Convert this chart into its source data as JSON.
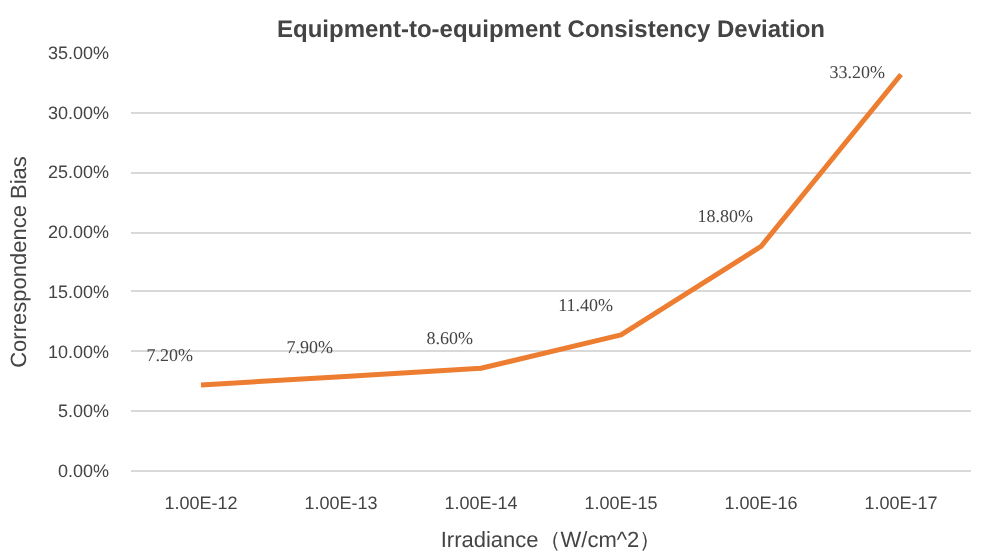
{
  "chart_data": {
    "type": "line",
    "title": "Equipment-to-equipment Consistency Deviation",
    "xlabel": "Irradiance（W/cm^2）",
    "ylabel": "Correspondence Bias",
    "categories": [
      "1.00E-12",
      "1.00E-13",
      "1.00E-14",
      "1.00E-15",
      "1.00E-16",
      "1.00E-17"
    ],
    "series": [
      {
        "color": "#ed7d31",
        "values": [
          7.2,
          7.9,
          8.6,
          11.4,
          18.8,
          33.2
        ],
        "value_labels": [
          "7.20%",
          "7.90%",
          "8.60%",
          "11.40%",
          "18.80%",
          "33.20%"
        ]
      }
    ],
    "ylim": [
      0,
      35
    ],
    "yticks": [
      {
        "value": 0,
        "label": "0.00%"
      },
      {
        "value": 5,
        "label": "5.00%"
      },
      {
        "value": 10,
        "label": "10.00%"
      },
      {
        "value": 15,
        "label": "15.00%"
      },
      {
        "value": 20,
        "label": "20.00%"
      },
      {
        "value": 25,
        "label": "25.00%"
      },
      {
        "value": 30,
        "label": "30.00%"
      },
      {
        "value": 35,
        "label": "35.00%"
      }
    ],
    "grid": "y",
    "marker": "none",
    "line_style": "solid"
  }
}
